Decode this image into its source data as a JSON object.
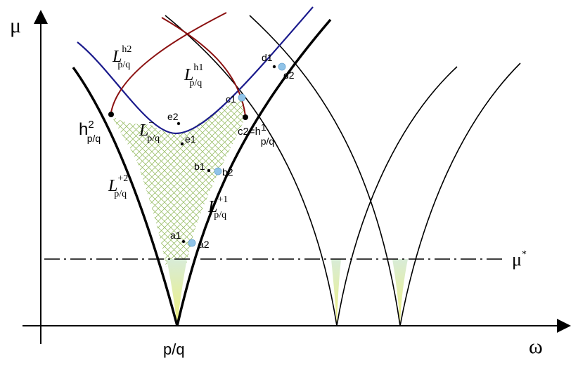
{
  "axes": {
    "y_label": "μ",
    "x_label": "ω",
    "x_tick": "p/q",
    "mu_star": "μ",
    "mu_star_sup": "*"
  },
  "curves": {
    "L_h2": {
      "main": "L",
      "sup": "h2",
      "sub": "p/q"
    },
    "L_h1": {
      "main": "L",
      "sup": "h1",
      "sub": "p/q"
    },
    "L_minus": {
      "main": "L",
      "sup": "−",
      "sub": "p/q"
    },
    "L_plus2": {
      "main": "L",
      "sup": "+2",
      "sub": "p/q"
    },
    "L_plus1": {
      "main": "L",
      "sup": "+1",
      "sub": "p/q"
    }
  },
  "points": {
    "h2": {
      "main": "h",
      "sup": "2",
      "sub": "p/q"
    },
    "c2h1": {
      "main": "c2=h",
      "sup": "1",
      "sub": "p/q"
    },
    "d1": "d1",
    "d2": "d2",
    "c1": "c1",
    "e2": "e2",
    "e1": "e1",
    "b1": "b1",
    "b2": "b2",
    "a1": "a1",
    "a2": "a2"
  },
  "colors": {
    "tongue": "#000000",
    "curve_h2": "#1a1a8c",
    "curve_h1": "#8b1010",
    "marker": "#8fc3e8",
    "hatch": "#9bbf6a",
    "fill_bottom": "#e8ee9a"
  }
}
